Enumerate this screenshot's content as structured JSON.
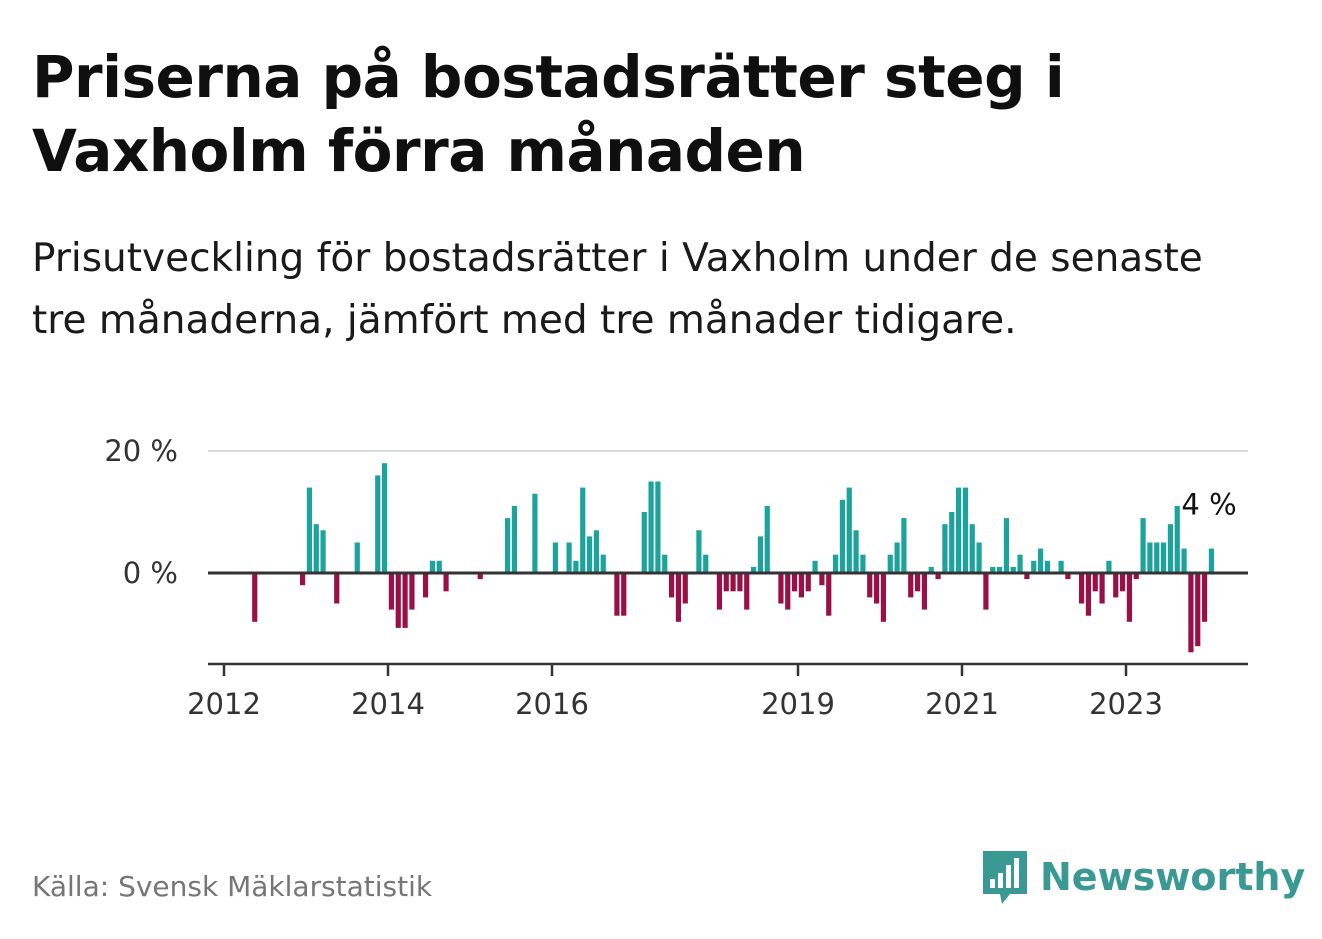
{
  "title": "Priserna på bostadsrätter steg i Vaxholm förra månaden",
  "subtitle": "Prisutveckling för bostadsrätter i Vaxholm under de senaste tre månaderna, jämfört med tre månader tidigare.",
  "source": "Källa: Svensk Mäklarstatistik",
  "brand": {
    "name": "Newsworthy",
    "icon": "newsworthy-logo-icon"
  },
  "colors": {
    "positive": "#1ba39c",
    "negative": "#9a0f45",
    "grid": "#d9d9d9",
    "axis": "#333333"
  },
  "chart_data": {
    "type": "bar",
    "title": "Priserna på bostadsrätter steg i Vaxholm förra månaden",
    "xlabel": "",
    "ylabel": "",
    "ylim": [
      -15,
      20
    ],
    "y_ticks": [
      {
        "value": 0,
        "label": "0 %"
      },
      {
        "value": 20,
        "label": "20 %"
      }
    ],
    "x_ticks": [
      {
        "value": 2012.0,
        "label": "2012"
      },
      {
        "value": 2014.0,
        "label": "2014"
      },
      {
        "value": 2016.0,
        "label": "2016"
      },
      {
        "value": 2019.0,
        "label": "2019"
      },
      {
        "value": 2021.0,
        "label": "2021"
      },
      {
        "value": 2023.0,
        "label": "2023"
      }
    ],
    "annotation": {
      "label": "4 %",
      "value": 4
    },
    "series": [
      {
        "name": "Prisutveckling",
        "start": 2012.0,
        "step_months": 1,
        "values": [
          null,
          null,
          null,
          null,
          -8,
          null,
          null,
          null,
          null,
          null,
          null,
          -2,
          14,
          8,
          7,
          null,
          -5,
          null,
          null,
          5,
          null,
          null,
          16,
          18,
          -6,
          -9,
          -9,
          -6,
          null,
          -4,
          2,
          2,
          -3,
          null,
          null,
          null,
          null,
          -1,
          null,
          null,
          null,
          9,
          11,
          null,
          null,
          13,
          null,
          null,
          5,
          null,
          5,
          2,
          14,
          6,
          7,
          3,
          null,
          -7,
          -7,
          null,
          null,
          10,
          15,
          15,
          3,
          -4,
          -8,
          -5,
          null,
          7,
          3,
          null,
          -6,
          -3,
          -3,
          -3,
          -6,
          1,
          6,
          11,
          null,
          -5,
          -6,
          -3,
          -4,
          -3,
          2,
          -2,
          -7,
          3,
          12,
          14,
          7,
          3,
          -4,
          -5,
          -8,
          3,
          5,
          9,
          -4,
          -3,
          -6,
          1,
          -1,
          8,
          10,
          14,
          14,
          8,
          5,
          -6,
          1,
          1,
          9,
          1,
          3,
          -1,
          2,
          4,
          2,
          null,
          2,
          -1,
          null,
          -5,
          -7,
          -3,
          -5,
          2,
          -4,
          -3,
          -8,
          -1,
          9,
          5,
          5,
          5,
          8,
          11,
          4,
          -13,
          -12,
          -8,
          4
        ]
      }
    ]
  }
}
